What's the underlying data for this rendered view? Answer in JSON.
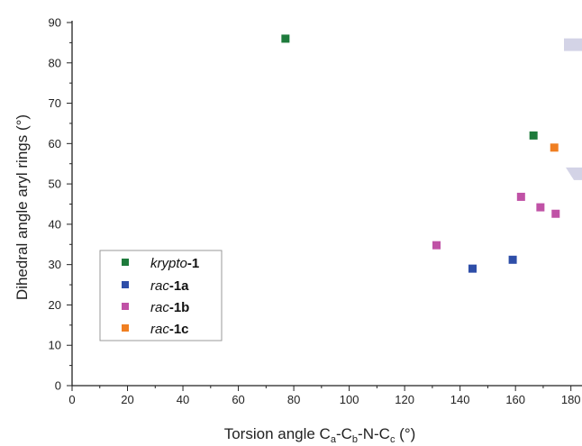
{
  "chart_data": {
    "type": "scatter",
    "xlabel": {
      "main": "Torsion angle C",
      "sub1": "a",
      "sep1": "-C",
      "sub2": "b",
      "sep2": "-N-C",
      "sub3": "c",
      "unit": " (°)"
    },
    "ylabel": "Dihedral angle aryl rings (°)",
    "xlim": [
      0,
      184
    ],
    "ylim": [
      0,
      90
    ],
    "xticks": [
      0,
      20,
      40,
      60,
      80,
      100,
      120,
      140,
      160,
      180
    ],
    "yticks": [
      0,
      10,
      20,
      30,
      40,
      50,
      60,
      70,
      80,
      90
    ],
    "grid": false,
    "legend_position": "bottom-left",
    "series": [
      {
        "name": "krypto-1",
        "label_italic": "krypto",
        "label_bold": "-1",
        "color": "#1e7b3c",
        "points": [
          [
            77,
            86
          ],
          [
            166.5,
            62
          ]
        ]
      },
      {
        "name": "rac-1a",
        "label_italic": "rac",
        "label_bold": "-1a",
        "color": "#2e4ea8",
        "points": [
          [
            144.5,
            29
          ],
          [
            159,
            31.2
          ]
        ]
      },
      {
        "name": "rac-1b",
        "label_italic": "rac",
        "label_bold": "-1b",
        "color": "#c052a6",
        "points": [
          [
            131.5,
            34.8
          ],
          [
            162,
            46.8
          ],
          [
            169,
            44.2
          ],
          [
            174.5,
            42.6
          ]
        ]
      },
      {
        "name": "rac-1c",
        "label_italic": "rac",
        "label_bold": "-1c",
        "color": "#f07f22",
        "points": [
          [
            174,
            59
          ]
        ]
      }
    ],
    "offscale_markers": {
      "color": "#d3d3e6",
      "ys": [
        84.5,
        52.5
      ]
    }
  }
}
